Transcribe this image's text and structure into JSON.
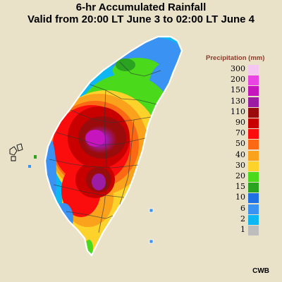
{
  "title_line1": "6-hr Accumulated Rainfall",
  "title_line2": "Valid from 20:00 LT June 3 to 02:00 LT June 4",
  "credit": "CWB",
  "legend": {
    "title": "Precipitation (mm)",
    "items": [
      {
        "label": "300",
        "color": "#f6c6f2"
      },
      {
        "label": "200",
        "color": "#ea44e4"
      },
      {
        "label": "150",
        "color": "#c615bf"
      },
      {
        "label": "130",
        "color": "#9c1ca3"
      },
      {
        "label": "110",
        "color": "#9a0c0c"
      },
      {
        "label": "90",
        "color": "#c80000"
      },
      {
        "label": "70",
        "color": "#fb0d0d"
      },
      {
        "label": "50",
        "color": "#fb6914"
      },
      {
        "label": "40",
        "color": "#fba21c"
      },
      {
        "label": "30",
        "color": "#fdd22b"
      },
      {
        "label": "20",
        "color": "#4ad91b"
      },
      {
        "label": "15",
        "color": "#2aa321"
      },
      {
        "label": "10",
        "color": "#1f6fe5"
      },
      {
        "label": "6",
        "color": "#3a92f3"
      },
      {
        "label": "2",
        "color": "#0db7f3"
      },
      {
        "label": "1",
        "color": "#bdbdbd"
      }
    ]
  }
}
